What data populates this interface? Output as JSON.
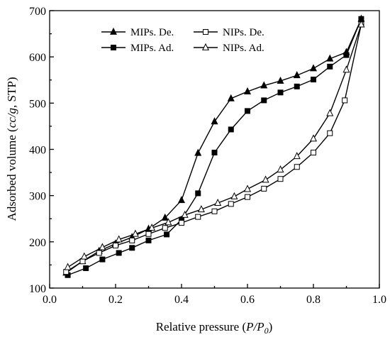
{
  "chart_data": {
    "type": "line",
    "xlabel_main": "Relative pressure (",
    "xlabel_italic": "P/P",
    "xlabel_sub": "0",
    "xlabel_end": ")",
    "ylabel_main": "Adsorbed volume (",
    "ylabel_italic": "cc/g",
    "ylabel_end": ", STP)",
    "xlim": [
      0.0,
      1.0
    ],
    "ylim": [
      100,
      700
    ],
    "xticks": [
      "0.0",
      "0.2",
      "0.4",
      "0.6",
      "0.8",
      "1.0"
    ],
    "yticks": [
      "100",
      "200",
      "300",
      "400",
      "500",
      "600",
      "700"
    ],
    "legend_position": "top-left",
    "series": [
      {
        "name": "MIPs. De.",
        "marker": "triangle-filled",
        "x": [
          0.05,
          0.1,
          0.15,
          0.2,
          0.25,
          0.3,
          0.35,
          0.4,
          0.45,
          0.5,
          0.55,
          0.6,
          0.65,
          0.7,
          0.75,
          0.8,
          0.85,
          0.9,
          0.945
        ],
        "y": [
          133,
          158,
          180,
          196,
          210,
          228,
          252,
          290,
          392,
          460,
          510,
          525,
          538,
          548,
          560,
          575,
          596,
          610,
          682
        ]
      },
      {
        "name": "MIPs. Ad.",
        "marker": "square-filled",
        "x": [
          0.055,
          0.11,
          0.16,
          0.21,
          0.25,
          0.3,
          0.355,
          0.4,
          0.45,
          0.5,
          0.55,
          0.6,
          0.65,
          0.7,
          0.75,
          0.8,
          0.85,
          0.9,
          0.945
        ],
        "y": [
          128,
          143,
          162,
          176,
          187,
          203,
          216,
          248,
          305,
          393,
          443,
          483,
          506,
          523,
          536,
          551,
          579,
          604,
          682
        ]
      },
      {
        "name": "NIPs. De.",
        "marker": "square-open",
        "x": [
          0.05,
          0.1,
          0.15,
          0.2,
          0.25,
          0.3,
          0.35,
          0.4,
          0.45,
          0.5,
          0.55,
          0.6,
          0.65,
          0.7,
          0.75,
          0.8,
          0.85,
          0.895,
          0.945
        ],
        "y": [
          135,
          158,
          176,
          192,
          203,
          217,
          230,
          241,
          254,
          266,
          282,
          297,
          315,
          336,
          362,
          393,
          435,
          506,
          670
        ]
      },
      {
        "name": "NIPs. Ad.",
        "marker": "triangle-open",
        "x": [
          0.055,
          0.105,
          0.16,
          0.21,
          0.26,
          0.31,
          0.36,
          0.41,
          0.46,
          0.51,
          0.56,
          0.6,
          0.655,
          0.7,
          0.75,
          0.8,
          0.85,
          0.9,
          0.945
        ],
        "y": [
          145,
          168,
          188,
          205,
          217,
          230,
          242,
          258,
          270,
          284,
          298,
          314,
          334,
          356,
          385,
          423,
          478,
          572,
          670
        ]
      }
    ]
  }
}
